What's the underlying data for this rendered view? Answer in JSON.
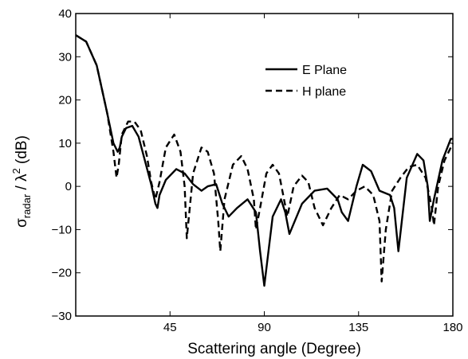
{
  "chart_data": {
    "type": "line",
    "title": "",
    "xlabel": "Scattering angle (Degree)",
    "ylabel_parts": {
      "sigma": "σ",
      "sub": "radar",
      "middle": " / λ",
      "sup": "2",
      "unit": " (dB)"
    },
    "xlim": [
      0,
      180
    ],
    "ylim": [
      -30,
      40
    ],
    "xticks": [
      45,
      90,
      135,
      180
    ],
    "xtick_labels": [
      "45",
      "90",
      "135",
      "180"
    ],
    "yticks": [
      -30,
      -20,
      -10,
      0,
      10,
      20,
      30,
      40
    ],
    "ytick_labels": [
      "−30",
      "−20",
      "−10",
      "0",
      "10",
      "20",
      "30",
      "40"
    ],
    "grid": false,
    "legend_position": "top-right",
    "series": [
      {
        "name": "E Plane",
        "style": "solid",
        "color": "#000000",
        "x": [
          0,
          5,
          10,
          15,
          18,
          20,
          21,
          22,
          24,
          27,
          30,
          33,
          36,
          38,
          39,
          40,
          43,
          48,
          52,
          56,
          60,
          63,
          67,
          70,
          73,
          77,
          82,
          86,
          88,
          90,
          94,
          98,
          100,
          102,
          108,
          114,
          120,
          125,
          127,
          130,
          134,
          137,
          141,
          145,
          150,
          152,
          154,
          158,
          163,
          166,
          168,
          169,
          171,
          175,
          179,
          180
        ],
        "y": [
          35,
          33.5,
          28,
          17,
          10,
          8,
          9,
          11.5,
          13.5,
          14,
          11.5,
          6,
          0.5,
          -4,
          -5,
          -2,
          1.5,
          4,
          3,
          0.5,
          -1,
          0,
          0.5,
          -4,
          -7,
          -5,
          -3,
          -6,
          -15,
          -23,
          -7,
          -3,
          -6,
          -11,
          -4,
          -1,
          -0.5,
          -3,
          -6,
          -8,
          0,
          5,
          3.5,
          -1,
          -2,
          -5,
          -15,
          2,
          7.5,
          6,
          0,
          -8,
          -3,
          6,
          11,
          11
        ]
      },
      {
        "name": "H plane",
        "style": "dashed",
        "color": "#000000",
        "x": [
          0,
          5,
          10,
          15,
          18,
          19.5,
          20.5,
          22,
          25,
          28,
          31,
          34,
          36,
          38,
          40,
          43,
          47,
          50,
          52,
          53,
          56,
          60,
          63,
          66,
          68,
          69,
          71,
          75,
          79,
          82,
          85,
          86,
          88,
          91,
          94,
          97,
          99,
          101,
          104,
          108,
          111,
          114,
          118,
          122,
          126,
          130,
          134,
          138,
          142,
          145,
          146,
          148,
          151,
          155,
          159,
          163,
          167,
          170,
          171,
          173,
          176,
          180
        ],
        "y": [
          35,
          33.5,
          28,
          17,
          8,
          2,
          5,
          12,
          15,
          15,
          13,
          7,
          1,
          -3,
          1,
          9,
          12,
          8,
          0,
          -12,
          3,
          9,
          8,
          3,
          -8,
          -15,
          -3,
          5,
          7,
          4,
          -3,
          -10,
          -5,
          3,
          5,
          3,
          -2,
          -7,
          0,
          2.5,
          1,
          -5,
          -9,
          -5,
          -2,
          -3,
          -1,
          0,
          -2,
          -8,
          -22,
          -10,
          -1,
          2,
          4.5,
          5,
          2,
          -5,
          -9,
          0,
          6,
          10
        ]
      }
    ]
  }
}
